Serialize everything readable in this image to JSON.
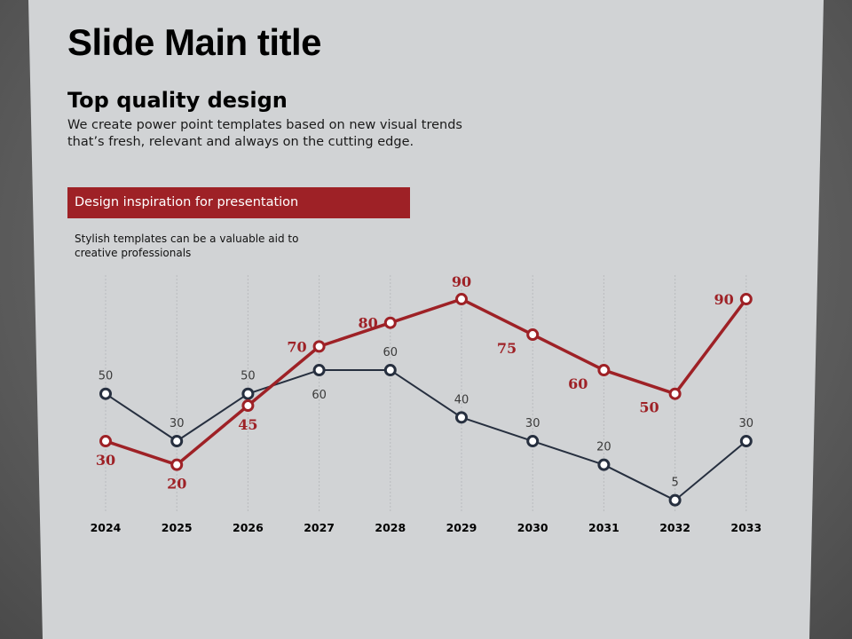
{
  "slide": {
    "title": "Slide Main title",
    "subtitle": "Top quality design",
    "description": "We create power point templates based on new visual trends that’s fresh, relevant and always on the cutting edge.",
    "banner": "Design inspiration for presentation",
    "note": "Stylish templates can be a valuable aid to creative professionals"
  },
  "colors": {
    "background": "#d1d3d5",
    "red": "#9e2126",
    "navy": "#262f3f"
  },
  "chart_data": {
    "type": "line",
    "categories": [
      "2024",
      "2025",
      "2026",
      "2027",
      "2028",
      "2029",
      "2030",
      "2031",
      "2032",
      "2033"
    ],
    "series": [
      {
        "values": [
          50,
          30,
          50,
          60,
          60,
          40,
          30,
          20,
          5,
          30
        ],
        "color": "#262f3f"
      },
      {
        "values": [
          30,
          20,
          45,
          70,
          80,
          90,
          75,
          60,
          50,
          90
        ],
        "color": "#9e2126"
      }
    ],
    "ylim": [
      0,
      100
    ],
    "grid": "vertical dashed",
    "legend": "none",
    "data_labels": true
  }
}
